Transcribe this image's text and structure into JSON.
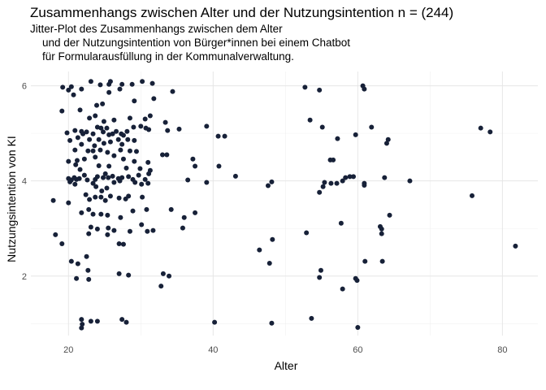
{
  "chart_data": {
    "type": "scatter",
    "title": "Zusammenhangs zwischen Alter und der Nutzungsintention n = (244)",
    "subtitle": [
      "Jitter-Plot des Zusammenhangs zwischen dem Alter",
      "    und der Nutzungsintention von Bürger*innen bei einem Chatbot",
      "    für Formularausfüllung in der Kommunalverwaltung."
    ],
    "x_label": "Alter",
    "y_label": "Nutzungsintention von KI",
    "color": "#172138",
    "grid": true,
    "xlim": [
      14.8,
      84.9
    ],
    "ylim": [
      0.75,
      6.3
    ],
    "xticks": [
      20,
      40,
      60,
      80
    ],
    "yticks": [
      2,
      4,
      6
    ],
    "xminor": [
      30,
      50,
      70
    ],
    "yminor": [
      1,
      3,
      5
    ],
    "x": [
      52.7,
      54.7,
      60.7,
      60.9,
      53.4,
      55.1,
      59.7,
      61.9,
      57.2,
      64.0,
      64.2,
      77.0,
      78.3,
      56.2,
      56.6,
      48.1,
      47.6,
      54.7,
      55.2,
      55.4,
      56.3,
      57.1,
      57.9,
      58.3,
      58.9,
      59.4,
      60.9,
      60.9,
      63.7,
      67.2,
      75.8,
      57.7,
      52.9,
      63.1,
      63.3,
      63.3,
      64.4,
      48.2,
      46.4,
      47.8,
      61.0,
      63.4,
      54.9,
      54.7,
      59.7,
      59.9,
      57.9,
      81.8,
      40.2,
      48.1,
      53.6,
      60.0,
      39.1,
      40.7,
      41.6,
      35.3,
      37.2,
      37.5,
      40.8,
      36.5,
      39.1,
      43.1,
      37.5,
      36.0,
      35.8,
      33.1,
      33.9,
      32.8,
      34.4,
      33.4,
      33.7,
      33.0,
      33.6,
      34.2,
      19.2,
      20.0,
      20.4,
      21.8,
      23.1,
      24.4,
      25.6,
      25.8,
      27.4,
      28.8,
      30.2,
      31.6,
      20.7,
      19.1,
      21.6,
      23.9,
      24.7,
      25.6,
      27.1,
      31.8,
      29.1,
      22.9,
      23.7,
      24.9,
      26.3,
      28.5,
      30.6,
      31.3,
      19.8,
      20.9,
      21.8,
      22.0,
      22.5,
      23.4,
      24.0,
      24.5,
      24.8,
      25.3,
      25.6,
      26.1,
      26.6,
      27.3,
      27.6,
      28.1,
      29.0,
      30.0,
      30.7,
      31.1,
      20.2,
      21.3,
      21.8,
      22.9,
      23.6,
      24.2,
      24.9,
      25.8,
      26.9,
      27.4,
      28.2,
      29.1,
      20.9,
      22.7,
      23.4,
      24.4,
      25.4,
      27.2,
      28.5,
      29.4,
      20.0,
      21.2,
      22.2,
      23.7,
      26.3,
      27.6,
      29.1,
      21.0,
      21.6,
      24.2,
      25.6,
      28.0,
      29.9,
      31.0,
      31.3,
      20.0,
      20.2,
      20.4,
      20.8,
      21.1,
      21.5,
      22.2,
      22.6,
      23.7,
      24.0,
      24.8,
      25.1,
      25.5,
      26.1,
      26.9,
      27.1,
      27.4,
      28.3,
      28.9,
      29.7,
      30.6,
      31.1,
      20.9,
      23.4,
      23.8,
      24.6,
      25.3,
      26.3,
      29.2,
      30.1,
      31.0,
      17.9,
      20.0,
      22.4,
      22.9,
      23.7,
      24.5,
      25.1,
      25.8,
      27.0,
      27.9,
      28.3,
      30.2,
      21.8,
      22.8,
      23.4,
      24.5,
      25.4,
      27.2,
      28.9,
      30.8,
      23.1,
      24.0,
      25.5,
      26.3,
      28.5,
      30.1,
      30.9,
      31.7,
      22.8,
      25.4,
      27.0,
      27.6,
      18.2,
      19.1,
      22.5,
      20.4,
      21.3,
      22.7,
      21.1,
      22.8,
      27.0,
      28.3,
      21.8,
      23.1,
      21.9,
      21.8,
      24.0,
      27.4,
      28.0
    ],
    "y": [
      5.97,
      5.91,
      6.0,
      5.93,
      5.28,
      5.13,
      4.97,
      5.13,
      4.89,
      4.79,
      4.87,
      5.11,
      5.03,
      4.44,
      4.44,
      3.98,
      3.9,
      3.76,
      3.88,
      3.97,
      3.95,
      3.95,
      4.0,
      4.07,
      4.09,
      4.09,
      3.95,
      3.91,
      4.07,
      4.0,
      3.69,
      3.11,
      2.91,
      3.04,
      2.99,
      2.89,
      3.28,
      2.77,
      2.55,
      2.27,
      2.31,
      2.31,
      2.12,
      1.97,
      1.95,
      1.91,
      1.73,
      2.63,
      1.03,
      1.01,
      1.11,
      0.92,
      5.15,
      4.94,
      4.94,
      5.09,
      4.46,
      4.31,
      4.31,
      4.02,
      3.97,
      4.1,
      3.33,
      3.23,
      3.01,
      2.05,
      2.0,
      1.79,
      5.88,
      5.23,
      5.06,
      4.55,
      4.55,
      3.4,
      5.97,
      5.91,
      5.98,
      5.93,
      6.09,
      6.02,
      6.03,
      6.09,
      6.03,
      6.03,
      6.09,
      6.05,
      5.81,
      5.47,
      5.49,
      5.59,
      5.62,
      5.86,
      5.93,
      5.73,
      5.68,
      5.32,
      5.37,
      5.25,
      5.28,
      5.32,
      5.3,
      5.37,
      5.01,
      5.06,
      5.04,
      4.99,
      5.03,
      4.99,
      5.13,
      5.11,
      5.03,
      5.11,
      4.97,
      4.99,
      5.04,
      4.99,
      4.96,
      5.04,
      5.13,
      5.15,
      5.11,
      5.08,
      4.85,
      4.91,
      4.77,
      4.87,
      4.74,
      4.87,
      4.79,
      4.82,
      4.87,
      4.77,
      4.87,
      4.85,
      4.65,
      4.63,
      4.63,
      4.65,
      4.6,
      4.65,
      4.63,
      4.62,
      4.41,
      4.43,
      4.46,
      4.5,
      4.53,
      4.46,
      4.41,
      4.34,
      4.24,
      4.32,
      4.31,
      4.27,
      4.26,
      4.39,
      4.22,
      4.05,
      3.98,
      4.02,
      4.07,
      4.03,
      4.05,
      4.12,
      4.02,
      4.03,
      4.09,
      4.07,
      4.15,
      4.07,
      4.1,
      4.05,
      4.0,
      4.07,
      4.09,
      4.03,
      4.12,
      4.03,
      4.15,
      3.93,
      3.95,
      3.88,
      3.79,
      3.85,
      3.97,
      3.97,
      3.93,
      3.95,
      3.59,
      3.54,
      3.71,
      3.61,
      3.66,
      3.66,
      3.59,
      3.68,
      3.64,
      3.62,
      3.68,
      3.66,
      3.33,
      3.4,
      3.3,
      3.3,
      3.28,
      3.23,
      3.37,
      3.4,
      3.03,
      2.99,
      3.01,
      2.96,
      2.94,
      3.08,
      2.94,
      2.96,
      2.89,
      2.87,
      2.68,
      2.67,
      2.87,
      2.68,
      2.41,
      2.31,
      2.26,
      2.12,
      1.95,
      1.93,
      2.05,
      2.02,
      1.09,
      1.05,
      0.99,
      0.91,
      1.05,
      1.09,
      1.03
    ]
  }
}
